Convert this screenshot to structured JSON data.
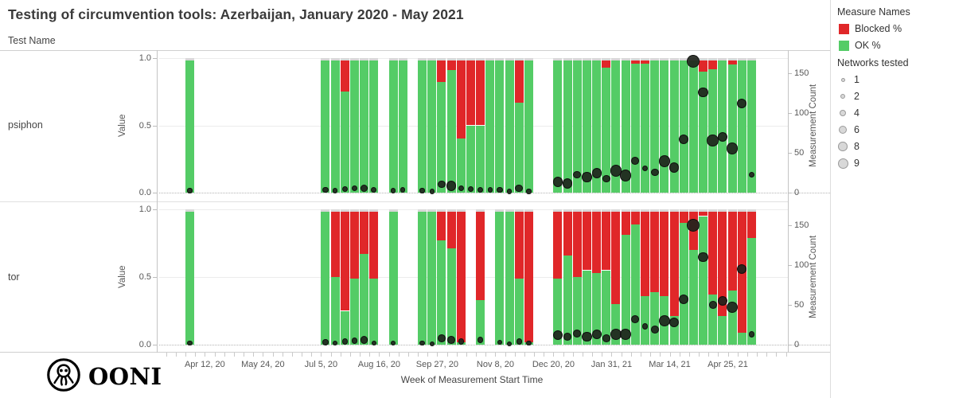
{
  "title": "Testing of circumvention tools: Azerbaijan, January 2020 - May 2021",
  "row_header": "Test Name",
  "rows": [
    {
      "label": "psiphon"
    },
    {
      "label": "tor"
    }
  ],
  "axes": {
    "left_label": "Value",
    "left_ticks": [
      {
        "v": 1.0,
        "label": "1.0"
      },
      {
        "v": 0.5,
        "label": "0.5"
      },
      {
        "v": 0.0,
        "label": "0.0"
      }
    ],
    "right_label": "Measurement Count",
    "right_ticks": [
      {
        "c": 150,
        "label": "150"
      },
      {
        "c": 100,
        "label": "100"
      },
      {
        "c": 50,
        "label": "50"
      },
      {
        "c": 0,
        "label": "0"
      }
    ],
    "x_label": "Week of Measurement Start Time",
    "x_ticks": [
      {
        "label": "Apr 12, 20",
        "week": 2
      },
      {
        "label": "May 24, 20",
        "week": 8
      },
      {
        "label": "Jul 5, 20",
        "week": 14
      },
      {
        "label": "Aug 16, 20",
        "week": 20
      },
      {
        "label": "Sep 27, 20",
        "week": 26
      },
      {
        "label": "Nov 8, 20",
        "week": 32
      },
      {
        "label": "Dec 20, 20",
        "week": 38
      },
      {
        "label": "Jan 31, 21",
        "week": 44
      },
      {
        "label": "Mar 14, 21",
        "week": 50
      },
      {
        "label": "Apr 25, 21",
        "week": 56
      }
    ]
  },
  "legend": {
    "measures_title": "Measure Names",
    "measures": [
      {
        "label": "Blocked %",
        "color": "#e02729"
      },
      {
        "label": "OK %",
        "color": "#54cc66"
      }
    ],
    "networks_title": "Networks tested",
    "network_sizes": [
      {
        "label": "1",
        "r": 2.5
      },
      {
        "label": "2",
        "r": 3.2
      },
      {
        "label": "4",
        "r": 4.2
      },
      {
        "label": "6",
        "r": 5.0
      },
      {
        "label": "8",
        "r": 5.8
      },
      {
        "label": "9",
        "r": 6.5
      }
    ]
  },
  "footer": {
    "brand": "OONI"
  },
  "colors": {
    "blocked": "#e02729",
    "ok": "#54cc66",
    "stack_cap": "#d8d8d8",
    "dot": "#1e221c"
  },
  "chart_data": [
    {
      "type": "bar",
      "title": "psiphon",
      "stacked": true,
      "ylabel": "Value",
      "y2label": "Measurement Count",
      "ylim": [
        0,
        1.0
      ],
      "y2lim": [
        0,
        175
      ],
      "x_unit": "weeks since Mar 29, 2020 (weekly bins)",
      "columns": [
        "week_index",
        "ok_pct",
        "blocked_pct",
        "measurement_count",
        "networks_tested"
      ],
      "bars": [
        [
          0,
          0.98,
          0,
          2,
          1
        ],
        [
          14,
          0.98,
          0,
          3,
          2
        ],
        [
          15,
          0.98,
          0,
          2,
          1
        ],
        [
          16,
          0.75,
          0.23,
          4,
          2
        ],
        [
          17,
          0.98,
          0,
          5,
          2
        ],
        [
          18,
          0.98,
          0,
          5,
          4
        ],
        [
          19,
          0.98,
          0,
          3,
          2
        ],
        [
          21,
          0.98,
          0,
          2,
          1
        ],
        [
          22,
          0.98,
          0,
          3,
          1
        ],
        [
          24,
          0.98,
          0,
          2,
          1
        ],
        [
          25,
          0.98,
          0,
          1,
          1
        ],
        [
          26,
          0.82,
          0.16,
          10,
          4
        ],
        [
          27,
          0.91,
          0.07,
          8,
          6
        ],
        [
          28,
          0.4,
          0.58,
          5,
          2
        ],
        [
          29,
          0.5,
          0.48,
          4,
          2
        ],
        [
          30,
          0.5,
          0.48,
          3,
          2
        ],
        [
          31,
          0.98,
          0,
          3,
          1
        ],
        [
          32,
          0.98,
          0,
          3,
          2
        ],
        [
          33,
          0.98,
          0,
          1,
          1
        ],
        [
          34,
          0.67,
          0.31,
          5,
          4
        ],
        [
          35,
          0.98,
          0,
          1,
          1
        ],
        [
          38,
          0.98,
          0,
          13,
          6
        ],
        [
          39,
          0.98,
          0,
          11,
          6
        ],
        [
          40,
          0.98,
          0,
          22,
          4
        ],
        [
          41,
          0.98,
          0,
          19,
          6
        ],
        [
          42,
          0.98,
          0,
          24,
          6
        ],
        [
          43,
          0.93,
          0.05,
          17,
          4
        ],
        [
          44,
          0.98,
          0,
          27,
          8
        ],
        [
          45,
          0.98,
          0,
          21,
          8
        ],
        [
          46,
          0.96,
          0.02,
          40,
          4
        ],
        [
          47,
          0.96,
          0.02,
          30,
          2
        ],
        [
          48,
          0.98,
          0,
          25,
          4
        ],
        [
          49,
          0.98,
          0,
          39,
          8
        ],
        [
          50,
          0.98,
          0,
          31,
          6
        ],
        [
          51,
          0.98,
          0,
          67,
          6
        ],
        [
          52,
          0.98,
          0,
          165,
          9
        ],
        [
          53,
          0.9,
          0.08,
          126,
          6
        ],
        [
          54,
          0.92,
          0.06,
          65,
          8
        ],
        [
          55,
          0.98,
          0,
          70,
          6
        ],
        [
          56,
          0.95,
          0.03,
          55,
          8
        ],
        [
          57,
          0.98,
          0,
          112,
          6
        ],
        [
          58,
          0.98,
          0,
          22,
          2
        ]
      ]
    },
    {
      "type": "bar",
      "title": "tor",
      "stacked": true,
      "ylabel": "Value",
      "y2label": "Measurement Count",
      "ylim": [
        0,
        1.0
      ],
      "y2lim": [
        0,
        175
      ],
      "x_unit": "weeks since Mar 29, 2020 (weekly bins)",
      "columns": [
        "week_index",
        "ok_pct",
        "blocked_pct",
        "measurement_count",
        "networks_tested"
      ],
      "bars": [
        [
          0,
          0.98,
          0,
          2,
          1
        ],
        [
          14,
          0.98,
          0,
          3,
          2
        ],
        [
          15,
          0.5,
          0.48,
          2,
          1
        ],
        [
          16,
          0.25,
          0.73,
          4,
          2
        ],
        [
          17,
          0.49,
          0.49,
          5,
          2
        ],
        [
          18,
          0.67,
          0.31,
          6,
          4
        ],
        [
          19,
          0.49,
          0.49,
          2,
          1
        ],
        [
          21,
          0.98,
          0,
          2,
          1
        ],
        [
          24,
          0.98,
          0,
          2,
          1
        ],
        [
          25,
          0.98,
          0,
          1,
          1
        ],
        [
          26,
          0.77,
          0.21,
          8,
          4
        ],
        [
          27,
          0.71,
          0.27,
          6,
          4
        ],
        [
          28,
          0.02,
          0.96,
          4,
          2
        ],
        [
          30,
          0.33,
          0.65,
          6,
          2
        ],
        [
          32,
          0.98,
          0,
          3,
          1
        ],
        [
          33,
          0.98,
          0,
          1,
          1
        ],
        [
          34,
          0.49,
          0.49,
          4,
          2
        ],
        [
          35,
          0.02,
          0.96,
          2,
          1
        ],
        [
          38,
          0.49,
          0.49,
          12,
          6
        ],
        [
          39,
          0.66,
          0.32,
          10,
          4
        ],
        [
          40,
          0.5,
          0.48,
          14,
          4
        ],
        [
          41,
          0.55,
          0.43,
          10,
          6
        ],
        [
          42,
          0.53,
          0.45,
          13,
          6
        ],
        [
          43,
          0.55,
          0.43,
          8,
          4
        ],
        [
          44,
          0.3,
          0.68,
          13,
          8
        ],
        [
          45,
          0.81,
          0.17,
          13,
          8
        ],
        [
          46,
          0.89,
          0.09,
          32,
          4
        ],
        [
          47,
          0.36,
          0.62,
          23,
          2
        ],
        [
          48,
          0.39,
          0.59,
          19,
          4
        ],
        [
          49,
          0.36,
          0.62,
          30,
          8
        ],
        [
          50,
          0.21,
          0.77,
          28,
          6
        ],
        [
          51,
          0.9,
          0.08,
          57,
          6
        ],
        [
          52,
          0.7,
          0.28,
          150,
          9
        ],
        [
          53,
          0.95,
          0.03,
          110,
          6
        ],
        [
          54,
          0.37,
          0.61,
          50,
          4
        ],
        [
          55,
          0.21,
          0.77,
          55,
          6
        ],
        [
          56,
          0.4,
          0.58,
          47,
          8
        ],
        [
          57,
          0.09,
          0.89,
          95,
          6
        ],
        [
          58,
          0.79,
          0.19,
          13,
          2
        ]
      ]
    }
  ]
}
